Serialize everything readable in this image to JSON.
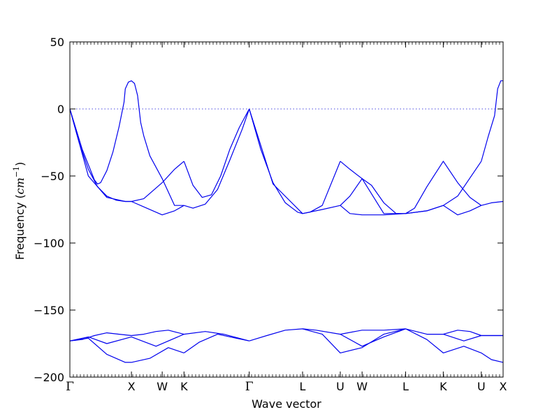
{
  "chart_data": {
    "type": "line",
    "title": "",
    "xlabel": "Wave vector",
    "ylabel_text": "Frequency (",
    "ylabel_unit": "cm",
    "ylabel_exp": "−1",
    "ylabel_close": ")",
    "ylim": [
      -200,
      50
    ],
    "y_ticks": [
      50,
      0,
      -50,
      -100,
      -150,
      -200
    ],
    "y_tick_labels": [
      "50",
      "0",
      "−50",
      "−100",
      "−150",
      "−200"
    ],
    "x_ticks": [
      {
        "label": "Γ",
        "x": 0.0
      },
      {
        "label": "X",
        "x": 1.0
      },
      {
        "label": "W",
        "x": 1.5
      },
      {
        "label": "K",
        "x": 1.854
      },
      {
        "label": "Γ",
        "x": 2.914
      },
      {
        "label": "L",
        "x": 3.78
      },
      {
        "label": "U",
        "x": 4.393
      },
      {
        "label": "W",
        "x": 4.747
      },
      {
        "label": "L",
        "x": 5.454
      },
      {
        "label": "K",
        "x": 6.066
      },
      {
        "label": "U",
        "x": 6.684
      },
      {
        "label": "X",
        "x": 7.038
      }
    ],
    "zero_line": true,
    "line_color": "#0000ee",
    "zero_line_color": "#4a4ae0",
    "series": [
      {
        "x": [
          0,
          0.2,
          0.4,
          0.45,
          0.5,
          0.6,
          0.7,
          0.8,
          0.88,
          0.9,
          0.95,
          1.0,
          1.05,
          1.1,
          1.15,
          1.2,
          1.3,
          1.5,
          1.7,
          1.854
        ],
        "values": [
          0,
          -30,
          -53,
          -56,
          -55,
          -46,
          -32,
          -13,
          5,
          15,
          20,
          21,
          19,
          10,
          -10,
          -20,
          -35,
          -52,
          -72,
          -72
        ]
      },
      {
        "x": [
          0,
          0.15,
          0.3,
          0.45,
          0.6,
          0.75,
          0.9,
          1.0,
          1.2,
          1.5,
          1.7,
          1.854
        ],
        "values": [
          0,
          -25,
          -45,
          -58,
          -65,
          -68,
          -69,
          -69,
          -67,
          -55,
          -45,
          -39
        ]
      },
      {
        "x": [
          0,
          0.3,
          0.6,
          0.9,
          1.0,
          1.2,
          1.5,
          1.7,
          1.854
        ],
        "values": [
          0,
          -50,
          -66,
          -69,
          -69,
          -73,
          -79,
          -76,
          -72
        ]
      },
      {
        "x": [
          1.854,
          2.0,
          2.15,
          2.3,
          2.45,
          2.6,
          2.75,
          2.914
        ],
        "values": [
          -39,
          -57,
          -66,
          -64,
          -50,
          -30,
          -14,
          0
        ]
      },
      {
        "x": [
          1.854,
          2.0,
          2.2,
          2.4,
          2.6,
          2.8,
          2.914
        ],
        "values": [
          -72,
          -74,
          -71,
          -60,
          -38,
          -15,
          0
        ]
      },
      {
        "x": [
          2.914,
          3.1,
          3.3,
          3.5,
          3.7,
          3.78,
          3.9,
          4.1,
          4.393
        ],
        "values": [
          0,
          -30,
          -55,
          -70,
          -77,
          -78,
          -77,
          -72,
          -39
        ]
      },
      {
        "x": [
          2.914,
          3.3,
          3.78,
          4.1,
          4.393
        ],
        "values": [
          0,
          -56,
          -78,
          -75,
          -72
        ]
      },
      {
        "x": [
          4.393,
          4.55,
          4.747,
          4.9,
          5.1,
          5.3,
          5.454
        ],
        "values": [
          -39,
          -45,
          -52,
          -57,
          -70,
          -78,
          -78
        ]
      },
      {
        "x": [
          4.393,
          4.55,
          4.747,
          5.1,
          5.454
        ],
        "values": [
          -72,
          -65,
          -52,
          -78,
          -78
        ]
      },
      {
        "x": [
          4.393,
          4.55,
          4.747,
          5.1,
          5.454
        ],
        "values": [
          -72,
          -78,
          -79,
          -79,
          -78
        ]
      },
      {
        "x": [
          5.454,
          5.6,
          5.8,
          6.066,
          6.3,
          6.5,
          6.684
        ],
        "values": [
          -78,
          -74,
          -58,
          -39,
          -55,
          -66,
          -72
        ]
      },
      {
        "x": [
          5.454,
          5.8,
          6.066,
          6.3,
          6.5,
          6.684
        ],
        "values": [
          -78,
          -76,
          -72,
          -79,
          -76,
          -72
        ]
      },
      {
        "x": [
          5.454,
          5.8,
          6.066,
          6.3,
          6.684
        ],
        "values": [
          -78,
          -76,
          -72,
          -65,
          -39
        ]
      },
      {
        "x": [
          6.684,
          6.8,
          6.9,
          6.95,
          7.0,
          7.038
        ],
        "values": [
          -39,
          -20,
          -5,
          15,
          21,
          21
        ]
      },
      {
        "x": [
          6.684,
          6.85,
          7.038
        ],
        "values": [
          -72,
          -70,
          -69
        ]
      },
      {
        "x": [
          0,
          0.2,
          0.4,
          0.6,
          0.8,
          1.0,
          1.2,
          1.4,
          1.6,
          1.854,
          2.2,
          2.5,
          2.914
        ],
        "values": [
          -173,
          -172,
          -169,
          -167,
          -168,
          -169,
          -168,
          -166,
          -165,
          -168,
          -166,
          -168,
          -173
        ]
      },
      {
        "x": [
          0,
          0.3,
          0.6,
          0.9,
          1.0,
          1.3,
          1.6,
          1.854
        ],
        "values": [
          -173,
          -171,
          -183,
          -189,
          -189,
          -186,
          -178,
          -182
        ]
      },
      {
        "x": [
          0,
          0.3,
          0.6,
          1.0,
          1.4,
          1.854
        ],
        "values": [
          -173,
          -170,
          -175,
          -170,
          -177,
          -168
        ]
      },
      {
        "x": [
          1.854,
          2.1,
          2.4,
          2.7,
          2.914
        ],
        "values": [
          -182,
          -174,
          -168,
          -171,
          -173
        ]
      },
      {
        "x": [
          2.914,
          3.2,
          3.5,
          3.78,
          4.0,
          4.393,
          4.747,
          5.1,
          5.454
        ],
        "values": [
          -173,
          -169,
          -165,
          -164,
          -165,
          -168,
          -165,
          -165,
          -164
        ]
      },
      {
        "x": [
          3.78,
          4.1,
          4.393,
          4.747,
          5.1,
          5.454
        ],
        "values": [
          -164,
          -168,
          -182,
          -178,
          -168,
          -164
        ]
      },
      {
        "x": [
          4.393,
          4.747,
          5.1,
          5.454
        ],
        "values": [
          -168,
          -177,
          -170,
          -164
        ]
      },
      {
        "x": [
          5.454,
          5.8,
          6.066,
          6.3,
          6.5,
          6.684,
          7.038
        ],
        "values": [
          -164,
          -168,
          -168,
          -165,
          -166,
          -169,
          -169
        ]
      },
      {
        "x": [
          5.454,
          5.8,
          6.066,
          6.4,
          6.684,
          6.85,
          7.038
        ],
        "values": [
          -164,
          -172,
          -182,
          -177,
          -182,
          -187,
          -189
        ]
      },
      {
        "x": [
          6.066,
          6.4,
          6.684,
          7.038
        ],
        "values": [
          -168,
          -173,
          -169,
          -169
        ]
      }
    ]
  }
}
